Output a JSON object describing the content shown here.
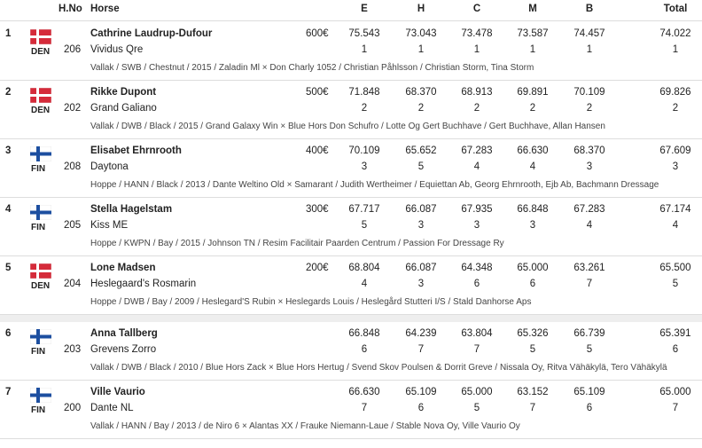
{
  "header": {
    "hno": "H.No",
    "horse": "Horse",
    "judges": [
      "E",
      "H",
      "C",
      "M",
      "B"
    ],
    "total": "Total"
  },
  "rows": [
    {
      "rank": "1",
      "country": "DEN",
      "hno": "206",
      "rider": "Cathrine Laudrup-Dufour",
      "horse": "Vividus Qre",
      "prize": "600€",
      "scores": [
        {
          "score": "75.543",
          "place": 1
        },
        {
          "score": "73.043",
          "place": 1
        },
        {
          "score": "73.478",
          "place": 1
        },
        {
          "score": "73.587",
          "place": 1
        },
        {
          "score": "74.457",
          "place": 1
        },
        {
          "score": "74.022",
          "place": 1
        }
      ],
      "details": "Vallak / SWB / Chestnut / 2015 / Zaladin Ml × Don Charly 1052 / Christian Påhlsson / Christian Storm, Tina Storm"
    },
    {
      "rank": "2",
      "country": "DEN",
      "hno": "202",
      "rider": "Rikke Dupont",
      "horse": "Grand Galiano",
      "prize": "500€",
      "scores": [
        {
          "score": "71.848",
          "place": 2
        },
        {
          "score": "68.370",
          "place": 2
        },
        {
          "score": "68.913",
          "place": 2
        },
        {
          "score": "69.891",
          "place": 2
        },
        {
          "score": "70.109",
          "place": 2
        },
        {
          "score": "69.826",
          "place": 2
        }
      ],
      "details": "Vallak / DWB / Black / 2015 / Grand Galaxy Win × Blue Hors Don Schufro / Lotte Og Gert Buchhave / Gert Buchhave, Allan Hansen"
    },
    {
      "rank": "3",
      "country": "FIN",
      "hno": "208",
      "rider": "Elisabet Ehrnrooth",
      "horse": "Daytona",
      "prize": "400€",
      "scores": [
        {
          "score": "70.109",
          "place": 3
        },
        {
          "score": "65.652",
          "place": 5
        },
        {
          "score": "67.283",
          "place": 4
        },
        {
          "score": "66.630",
          "place": 4
        },
        {
          "score": "68.370",
          "place": 3
        },
        {
          "score": "67.609",
          "place": 3
        }
      ],
      "details": "Hoppe / HANN / Black / 2013 / Dante Weltino Old × Samarant / Judith Wertheimer / Equiettan Ab, Georg Ehrnrooth, Ejb Ab, Bachmann Dressage"
    },
    {
      "rank": "4",
      "country": "FIN",
      "hno": "205",
      "rider": "Stella Hagelstam",
      "horse": "Kiss ME",
      "prize": "300€",
      "scores": [
        {
          "score": "67.717",
          "place": 5
        },
        {
          "score": "66.087",
          "place": 3
        },
        {
          "score": "67.935",
          "place": 3
        },
        {
          "score": "66.848",
          "place": 3
        },
        {
          "score": "67.283",
          "place": 4
        },
        {
          "score": "67.174",
          "place": 4
        }
      ],
      "details": "Hoppe / KWPN / Bay / 2015 / Johnson TN / Resim Facilitair Paarden Centrum / Passion For Dressage Ry"
    },
    {
      "rank": "5",
      "country": "DEN",
      "hno": "204",
      "rider": "Lone Madsen",
      "horse": "Heslegaard's Rosmarin",
      "prize": "200€",
      "scores": [
        {
          "score": "68.804",
          "place": 4
        },
        {
          "score": "66.087",
          "place": 3
        },
        {
          "score": "64.348",
          "place": 6
        },
        {
          "score": "65.000",
          "place": 6
        },
        {
          "score": "63.261",
          "place": 7
        },
        {
          "score": "65.500",
          "place": 5
        }
      ],
      "details": "Hoppe / DWB / Bay / 2009 / Heslegard'S Rubin × Heslegards Louis / Heslegård Stutteri I/S / Stald Danhorse Aps"
    },
    {
      "rank": "6",
      "country": "FIN",
      "hno": "203",
      "rider": "Anna Tallberg",
      "horse": "Grevens Zorro",
      "scores": [
        {
          "score": "66.848",
          "place": 6
        },
        {
          "score": "64.239",
          "place": 7
        },
        {
          "score": "63.804",
          "place": 7
        },
        {
          "score": "65.326",
          "place": 5
        },
        {
          "score": "66.739",
          "place": 5
        },
        {
          "score": "65.391",
          "place": 6
        }
      ],
      "details": "Vallak / DWB / Black / 2010 / Blue Hors Zack × Blue Hors Hertug / Svend Skov Poulsen & Dorrit Greve / Nissala Oy, Ritva Vähäkylä, Tero Vähäkylä"
    },
    {
      "rank": "7",
      "country": "FIN",
      "hno": "200",
      "rider": "Ville Vaurio",
      "horse": "Dante NL",
      "scores": [
        {
          "score": "66.630",
          "place": 7
        },
        {
          "score": "65.109",
          "place": 6
        },
        {
          "score": "65.000",
          "place": 5
        },
        {
          "score": "63.152",
          "place": 7
        },
        {
          "score": "65.109",
          "place": 6
        },
        {
          "score": "65.000",
          "place": 7
        }
      ],
      "details": "Vallak / HANN / Bay / 2013 / de Niro 6 × Alantas XX / Frauke Niemann-Laue / Stable Nova Oy, Ville Vaurio Oy"
    }
  ]
}
